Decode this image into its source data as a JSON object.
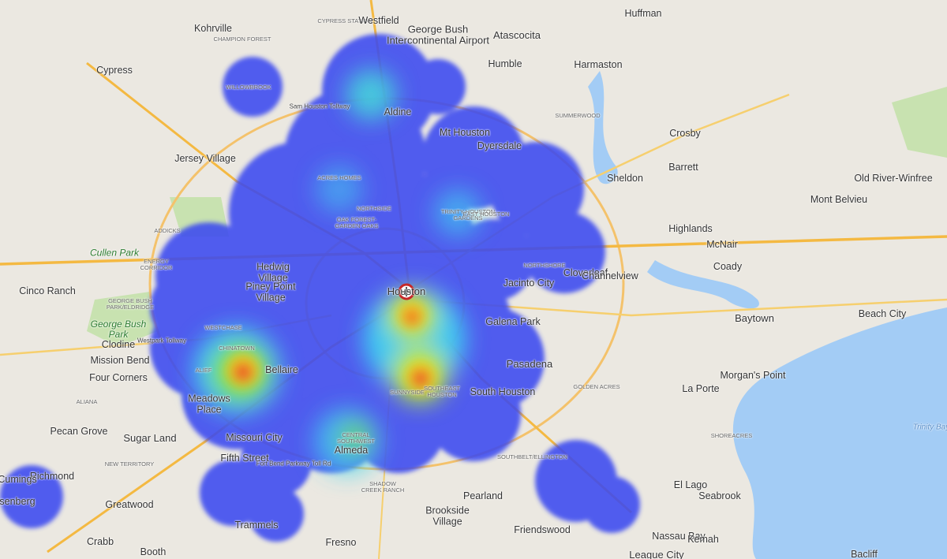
{
  "places": [
    {
      "label": "Kohrville"
    },
    {
      "label": "Cypress"
    },
    {
      "label": "CYPRESS STATION"
    },
    {
      "label": "Westfield"
    },
    {
      "label": "George Bush Intercontinental Airport"
    },
    {
      "label": "Humble"
    },
    {
      "label": "Atascocita"
    },
    {
      "label": "Huffman"
    },
    {
      "label": "Harmaston"
    },
    {
      "label": "CHAMPION FOREST"
    },
    {
      "label": "WILLOWBROOK"
    },
    {
      "label": "Sam Houston Tollway"
    },
    {
      "label": "Aldine"
    },
    {
      "label": "SUMMERWOOD"
    },
    {
      "label": "Dyersdale"
    },
    {
      "label": "Mt Houston"
    },
    {
      "label": "Crosby"
    },
    {
      "label": "Jersey Village"
    },
    {
      "label": "Barrett"
    },
    {
      "label": "Sheldon"
    },
    {
      "label": "Old River-Winfree"
    },
    {
      "label": "Mont Belvieu"
    },
    {
      "label": "ACRES HOMES"
    },
    {
      "label": "NORTHSIDE"
    },
    {
      "label": "OAK FOREST-GARDEN OAKS"
    },
    {
      "label": "TRINITY-HOUSTON GARDENS"
    },
    {
      "label": "EAST HOUSTON"
    },
    {
      "label": "ADDICKS"
    },
    {
      "label": "Highlands"
    },
    {
      "label": "McNair"
    },
    {
      "label": "Cullen Park"
    },
    {
      "label": "ENERGY CORRIDOR"
    },
    {
      "label": "Hedwig Village"
    },
    {
      "label": "Piney Point Village"
    },
    {
      "label": "Houston"
    },
    {
      "label": "NORTHSHORE"
    },
    {
      "label": "Jacinto City"
    },
    {
      "label": "Cloverleaf"
    },
    {
      "label": "Channelview"
    },
    {
      "label": "Coady"
    },
    {
      "label": "Cinco Ranch"
    },
    {
      "label": "GEORGE BUSH PARK/ELDRIDGE"
    },
    {
      "label": "George Bush Park"
    },
    {
      "label": "WESTCHASE"
    },
    {
      "label": "Baytown"
    },
    {
      "label": "Galena Park"
    },
    {
      "label": "Westpark Tollway"
    },
    {
      "label": "Clodine"
    },
    {
      "label": "Mission Bend"
    },
    {
      "label": "CHINATOWN"
    },
    {
      "label": "Bellaire"
    },
    {
      "label": "ALIEF"
    },
    {
      "label": "Four Corners"
    },
    {
      "label": "Pasadena"
    },
    {
      "label": "Beach City"
    },
    {
      "label": "Morgan's Point"
    },
    {
      "label": "Meadows Place"
    },
    {
      "label": "SUNNYSIDE"
    },
    {
      "label": "SOUTHEAST HOUSTON"
    },
    {
      "label": "South Houston"
    },
    {
      "label": "GOLDEN ACRES"
    },
    {
      "label": "ALIANA"
    },
    {
      "label": "La Porte"
    },
    {
      "label": "Pecan Grove"
    },
    {
      "label": "Sugar Land"
    },
    {
      "label": "Missouri City"
    },
    {
      "label": "CENTRAL SOUTHWEST"
    },
    {
      "label": "SHOREACRES"
    },
    {
      "label": "Fifth Street"
    },
    {
      "label": "NEW TERRITORY"
    },
    {
      "label": "Almeda"
    },
    {
      "label": "SOUTHBELT/ELLINGTON"
    },
    {
      "label": "Richmond"
    },
    {
      "label": "Cumings"
    },
    {
      "label": "Rosenberg"
    },
    {
      "label": "Greatwood"
    },
    {
      "label": "Brookside Village"
    },
    {
      "label": "SHADOW CREEK RANCH"
    },
    {
      "label": "Pearland"
    },
    {
      "label": "El Lago"
    },
    {
      "label": "Seabrook"
    },
    {
      "label": "Nassau Bay"
    },
    {
      "label": "Kemah"
    },
    {
      "label": "Crabb"
    },
    {
      "label": "Booth"
    },
    {
      "label": "Trammels"
    },
    {
      "label": "Fresno"
    },
    {
      "label": "Friendswood"
    },
    {
      "label": "League City"
    },
    {
      "label": "Bacliff"
    },
    {
      "label": "Trinity Bay"
    },
    {
      "label": "Fort Bend Parkway Toll Rd"
    }
  ]
}
